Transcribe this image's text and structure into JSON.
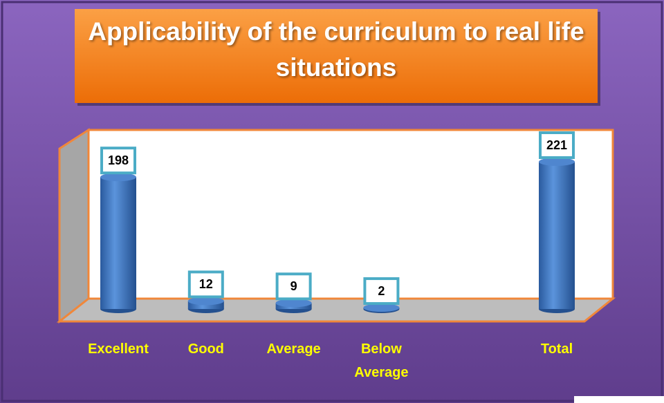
{
  "chart_data": {
    "type": "bar",
    "title": "Applicability of the curriculum to real life situations",
    "categories": [
      "Excellent",
      "Good",
      "Average",
      "Below Average",
      null,
      "Total"
    ],
    "values": [
      198,
      12,
      9,
      2,
      null,
      221
    ],
    "color": "#3f78c4",
    "label_color": "#ffff00"
  }
}
